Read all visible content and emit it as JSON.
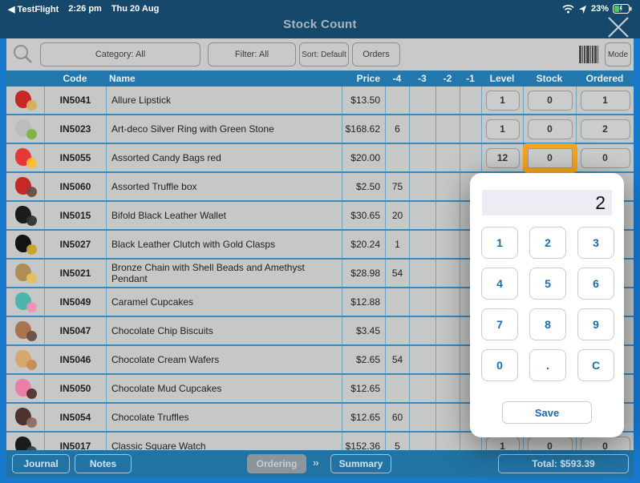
{
  "colors": {
    "frame": "#1878CC",
    "topbar": "#16486B",
    "bar_blue": "#2173A3",
    "header_blue": "#2277AC",
    "filter_bg": "#C9C9C9",
    "row_bg": "#C6C8C7",
    "row_line": "#3A87BE",
    "divider": "#6FA3C4",
    "code_blue": "#2F80D6",
    "accent": "#F5A51C",
    "keypad_blue": "#1B6DAD",
    "display_bg": "#ECECF4"
  },
  "status_bar": {
    "back_app": "◀ TestFlight",
    "time": "2:26 pm",
    "date": "Thu 20 Aug",
    "battery": "23%"
  },
  "nav": {
    "title": "Stock Count"
  },
  "filter_bar": {
    "category": "Category: All",
    "filter": "Filter: All",
    "sort": "Sort: Default",
    "orders": "Orders",
    "mode": "Mode"
  },
  "table": {
    "headers": [
      "Code",
      "Name",
      "Price",
      "-4",
      "-3",
      "-2",
      "-1",
      "Level",
      "Stock",
      "Ordered"
    ],
    "rows": [
      {
        "code": "IN5041",
        "name": "Allure Lipstick",
        "price": "$13.50",
        "m4": "",
        "m3": "",
        "m2": "",
        "m1": "",
        "level": "1",
        "stock": "0",
        "ordered": "1",
        "img": [
          "#C62828",
          "#D4AF5A"
        ]
      },
      {
        "code": "IN5023",
        "name": "Art-deco Silver Ring with Green Stone",
        "price": "$168.62",
        "m4": "6",
        "m3": "",
        "m2": "",
        "m1": "",
        "level": "1",
        "stock": "0",
        "ordered": "2",
        "img": [
          "#B9BDC0",
          "#7CB342"
        ]
      },
      {
        "code": "IN5055",
        "name": "Assorted Candy Bags red",
        "price": "$20.00",
        "m4": "",
        "m3": "",
        "m2": "",
        "m1": "",
        "level": "12",
        "stock": "0",
        "ordered": "0",
        "highlight_stock": true,
        "img": [
          "#E53935",
          "#FBC02D"
        ]
      },
      {
        "code": "IN5060",
        "name": "Assorted Truffle box",
        "price": "$2.50",
        "m4": "75",
        "m3": "",
        "m2": "",
        "m1": "",
        "level": null,
        "stock": null,
        "ordered": null,
        "img": [
          "#C62828",
          "#6D4C41"
        ]
      },
      {
        "code": "IN5015",
        "name": "Bifold Black Leather Wallet",
        "price": "$30.65",
        "m4": "20",
        "m3": "",
        "m2": "",
        "m1": "",
        "level": null,
        "stock": null,
        "ordered": null,
        "img": [
          "#1B1B1B",
          "#333333"
        ]
      },
      {
        "code": "IN5027",
        "name": "Black Leather Clutch with Gold Clasps",
        "price": "$20.24",
        "m4": "1",
        "m3": "",
        "m2": "",
        "m1": "",
        "level": null,
        "stock": null,
        "ordered": null,
        "img": [
          "#141414",
          "#C9A227"
        ]
      },
      {
        "code": "IN5021",
        "name": "Bronze Chain with Shell Beads and Amethyst Pendant",
        "price": "$28.98",
        "m4": "54",
        "m3": "",
        "m2": "",
        "m1": "",
        "level": null,
        "stock": null,
        "ordered": null,
        "img": [
          "#B08D57",
          "#E6C15A"
        ]
      },
      {
        "code": "IN5049",
        "name": "Caramel Cupcakes",
        "price": "$12.88",
        "m4": "",
        "m3": "",
        "m2": "",
        "m1": "",
        "level": null,
        "stock": null,
        "ordered": null,
        "img": [
          "#4DB6AC",
          "#F48FB1"
        ]
      },
      {
        "code": "IN5047",
        "name": "Chocolate Chip Biscuits",
        "price": "$3.45",
        "m4": "",
        "m3": "",
        "m2": "",
        "m1": "",
        "level": null,
        "stock": null,
        "ordered": null,
        "img": [
          "#A9744F",
          "#6D4C41"
        ]
      },
      {
        "code": "IN5046",
        "name": "Chocolate Cream Wafers",
        "price": "$2.65",
        "m4": "54",
        "m3": "",
        "m2": "",
        "m1": "",
        "level": null,
        "stock": null,
        "ordered": null,
        "img": [
          "#D7A86E",
          "#C68C53"
        ]
      },
      {
        "code": "IN5050",
        "name": "Chocolate Mud Cupcakes",
        "price": "$12.65",
        "m4": "",
        "m3": "",
        "m2": "",
        "m1": "",
        "level": null,
        "stock": null,
        "ordered": null,
        "img": [
          "#EC7FA9",
          "#4E342E"
        ]
      },
      {
        "code": "IN5054",
        "name": "Chocolate Truffles",
        "price": "$12.65",
        "m4": "60",
        "m3": "",
        "m2": "",
        "m1": "",
        "level": null,
        "stock": null,
        "ordered": null,
        "img": [
          "#4E342E",
          "#8D6E63"
        ]
      },
      {
        "code": "IN5017",
        "name": "Classic Square Watch",
        "price": "$152.36",
        "m4": "5",
        "m3": "",
        "m2": "",
        "m1": "",
        "level": "1",
        "stock": "0",
        "ordered": "0",
        "img": [
          "#1B1B1B",
          "#37474F"
        ]
      }
    ]
  },
  "keypad": {
    "display": "2",
    "keys": [
      "1",
      "2",
      "3",
      "4",
      "5",
      "6",
      "7",
      "8",
      "9",
      "0",
      ".",
      "C"
    ],
    "save": "Save"
  },
  "footer": {
    "journal": "Journal",
    "notes": "Notes",
    "ordering": "Ordering",
    "chevrons": "››",
    "summary": "Summary",
    "total": "Total: $593.39"
  }
}
